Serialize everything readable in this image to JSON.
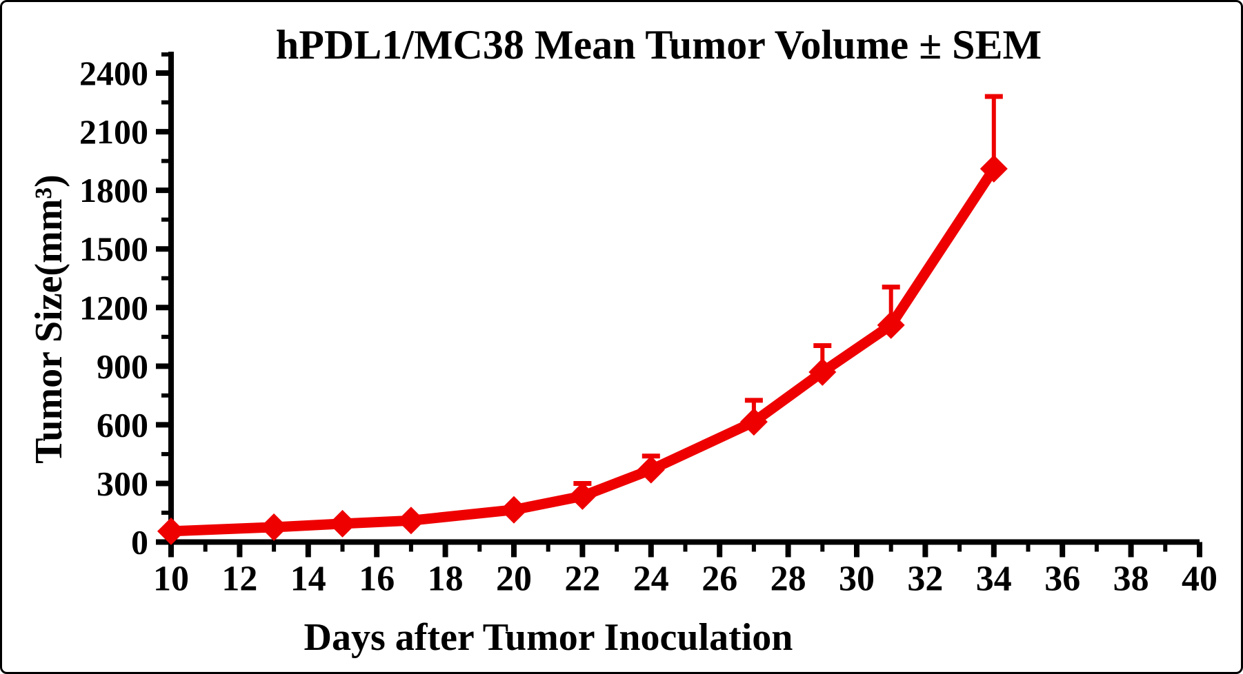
{
  "figure": {
    "title": "hPDL1/MC38 Mean Tumor Volume ± SEM",
    "x_axis_label": "Days after Tumor Inoculation",
    "y_axis_label": "Tumor Size(mm³)"
  },
  "chart_data": {
    "type": "line",
    "title": "hPDL1/MC38 Mean Tumor Volume ± SEM",
    "xlabel": "Days after Tumor Inoculation",
    "ylabel": "Tumor Size(mm³)",
    "x": [
      10,
      13,
      15,
      17,
      20,
      22,
      24,
      27,
      29,
      31,
      34
    ],
    "series": [
      {
        "name": "hPDL1/MC38 Mean Tumor Volume",
        "values": [
          55,
          76,
          94,
          110,
          165,
          235,
          370,
          615,
          870,
          1110,
          1910
        ],
        "sem_upper": [
          0,
          0,
          0,
          0,
          0,
          65,
          70,
          110,
          135,
          195,
          370
        ],
        "color": "#ee0000",
        "marker": "diamond",
        "error_bars": "upper-only"
      }
    ],
    "xlim": [
      10,
      40
    ],
    "ylim": [
      0,
      2400
    ],
    "x_major_ticks": [
      10,
      12,
      14,
      16,
      18,
      20,
      22,
      24,
      26,
      28,
      30,
      32,
      34,
      36,
      38,
      40
    ],
    "x_minor_ticks": [
      11,
      13,
      15,
      17,
      19,
      21,
      23,
      25,
      27,
      29,
      31,
      33,
      35,
      37,
      39
    ],
    "y_major_ticks": [
      0,
      300,
      600,
      900,
      1200,
      1500,
      1800,
      2100,
      2400
    ],
    "y_minor_ticks": [
      150,
      450,
      750,
      1050,
      1350,
      1650,
      1950,
      2250
    ],
    "grid": false,
    "legend": false,
    "axis_color": "#000000",
    "background": "#ffffff"
  }
}
